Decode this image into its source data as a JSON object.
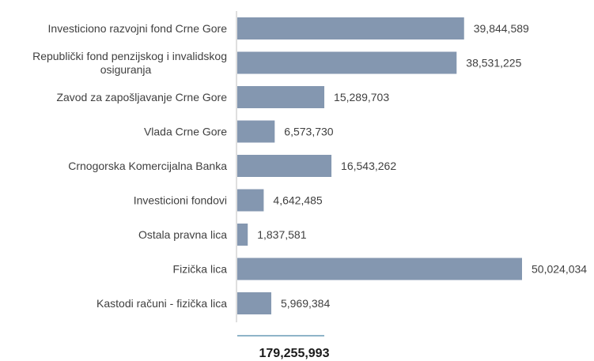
{
  "chart_data": {
    "type": "bar",
    "orientation": "horizontal",
    "categories": [
      [
        "Investiciono razvojni fond Crne Gore"
      ],
      [
        "Republički fond penzijskog i invalidskog",
        "osiguranja"
      ],
      [
        "Zavod za zapošljavanje Crne Gore"
      ],
      [
        "Vlada Crne Gore"
      ],
      [
        "Crnogorska Komercijalna Banka"
      ],
      [
        "Investicioni fondovi"
      ],
      [
        "Ostala pravna lica"
      ],
      [
        "Fizička lica"
      ],
      [
        "Kastodi računi - fizička lica"
      ]
    ],
    "values": [
      39844589,
      38531225,
      15289703,
      6573730,
      16543262,
      4642485,
      1837581,
      50024034,
      5969384
    ],
    "value_labels": [
      "39,844,589",
      "38,531,225",
      "15,289,703",
      "6,573,730",
      "16,543,262",
      "4,642,485",
      "1,837,581",
      "50,024,034",
      "5,969,384"
    ],
    "xlim": [
      0,
      50024034
    ],
    "bar_color": "#8497b0",
    "axis_color": "#bfbfbf",
    "grid": false,
    "legend": "none",
    "total": "179,255,993",
    "total_color": "#8fb4c8"
  }
}
